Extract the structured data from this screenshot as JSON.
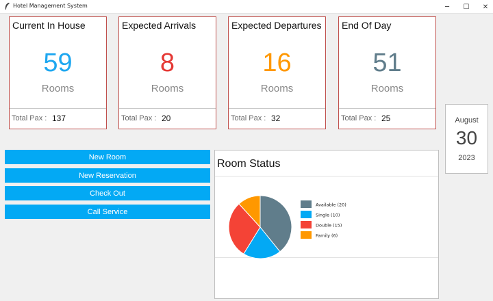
{
  "window": {
    "title": "Hotel Management System",
    "controls": {
      "minimize": "─",
      "maximize": "☐",
      "close": "✕"
    }
  },
  "cards": [
    {
      "title": "Current In House",
      "value": "59",
      "unit": "Rooms",
      "pax_label": "Total Pax :",
      "pax_value": "137",
      "color": "#1ea7f0"
    },
    {
      "title": "Expected Arrivals",
      "value": "8",
      "unit": "Rooms",
      "pax_label": "Total Pax :",
      "pax_value": "20",
      "color": "#e53935"
    },
    {
      "title": "Expected Departures",
      "value": "16",
      "unit": "Rooms",
      "pax_label": "Total Pax :",
      "pax_value": "32",
      "color": "#ff9800"
    },
    {
      "title": "End Of Day",
      "value": "51",
      "unit": "Rooms",
      "pax_label": "Total Pax :",
      "pax_value": "25",
      "color": "#607d8b"
    }
  ],
  "date": {
    "month": "August",
    "day": "30",
    "year": "2023"
  },
  "actions": [
    {
      "label": "New Room"
    },
    {
      "label": "New Reservation"
    },
    {
      "label": "Check Out"
    },
    {
      "label": "Call Service"
    }
  ],
  "room_status": {
    "title": "Room Status",
    "chart_data": {
      "type": "pie",
      "title": "",
      "legend_position": "right",
      "series": [
        {
          "label": "Available (20)",
          "value": 20,
          "color": "#607d8b"
        },
        {
          "label": "Single (10)",
          "value": 10,
          "color": "#03a9f4"
        },
        {
          "label": "Double (15)",
          "value": 15,
          "color": "#f44336"
        },
        {
          "label": "Family (6)",
          "value": 6,
          "color": "#ff9800"
        }
      ]
    }
  }
}
